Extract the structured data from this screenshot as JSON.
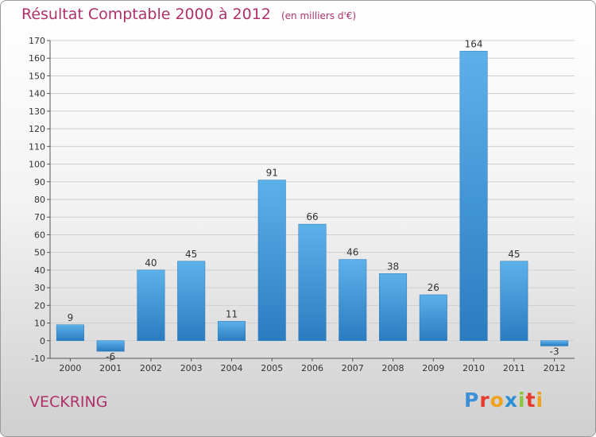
{
  "header": {
    "title": "Résultat Comptable 2000 à 2012",
    "subtitle": "(en milliers d'€)"
  },
  "footer": {
    "place": "VECKRING",
    "logo_letters": [
      "P",
      "r",
      "o",
      "x",
      "i",
      "t",
      "i"
    ],
    "logo_colors": [
      "#3d8fd8",
      "#e63b2e",
      "#f1a21d",
      "#2c8fd4",
      "#8cc63e",
      "#e63b2e",
      "#f1a21d"
    ]
  },
  "colors": {
    "bar_top": "#5db1ea",
    "bar_bottom": "#2a7cc0",
    "grid": "#cfcfcf",
    "axis": "#555555",
    "text": "#333333"
  },
  "chart_data": {
    "type": "bar",
    "title": "Résultat Comptable 2000 à 2012",
    "ylabel": "(en milliers d'€)",
    "xlabel": "",
    "categories": [
      "2000",
      "2001",
      "2002",
      "2003",
      "2004",
      "2005",
      "2006",
      "2007",
      "2008",
      "2009",
      "2010",
      "2011",
      "2012"
    ],
    "values": [
      9,
      -6,
      40,
      45,
      11,
      91,
      66,
      46,
      38,
      26,
      164,
      45,
      -3
    ],
    "ylim": [
      -10,
      170
    ],
    "yticks": [
      -10,
      0,
      10,
      20,
      30,
      40,
      50,
      60,
      70,
      80,
      90,
      100,
      110,
      120,
      130,
      140,
      150,
      160,
      170
    ],
    "grid": true,
    "data_labels": true
  }
}
